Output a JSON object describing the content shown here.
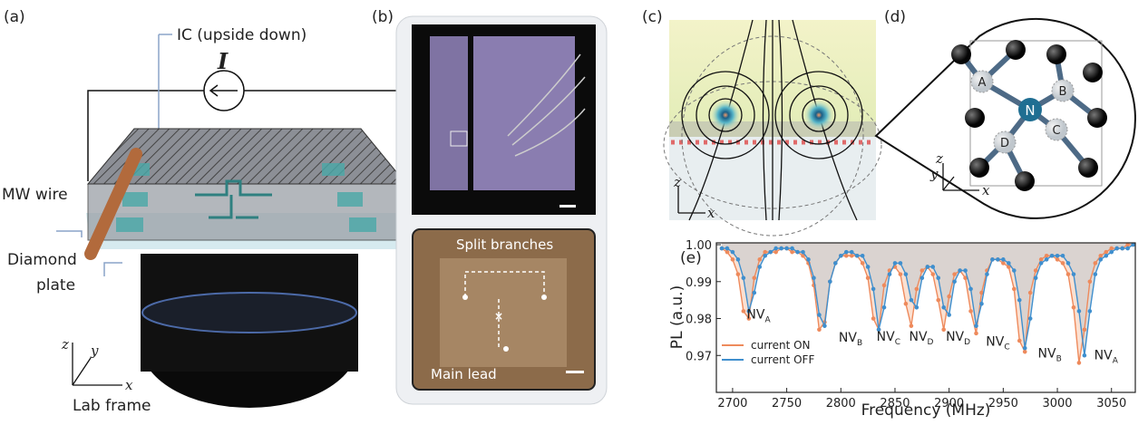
{
  "panel_a": {
    "label": "(a)",
    "ic_label": "IC (upside down)",
    "current": "I",
    "wire_label": "MW wire",
    "plate_label": [
      "Diamond",
      "plate"
    ],
    "axes": [
      "z",
      "y",
      "x"
    ],
    "frame_label": "Lab frame"
  },
  "panel_b": {
    "label": "(b)",
    "branch_label": "Split branches",
    "lead_label": "Main lead"
  },
  "panel_c": {
    "label": "(c)",
    "axes": [
      "z",
      "x"
    ]
  },
  "panel_d": {
    "label": "(d)",
    "atoms": [
      "A",
      "B",
      "N",
      "C",
      "D"
    ],
    "axes": [
      "z",
      "y",
      "x"
    ]
  },
  "chart_data": {
    "type": "line",
    "label": "(e)",
    "x_label": "Frequency (MHz)",
    "y_label": "PL (a.u.)",
    "x": [
      2690,
      2695,
      2700,
      2705,
      2710,
      2715,
      2720,
      2725,
      2730,
      2735,
      2740,
      2745,
      2750,
      2755,
      2760,
      2765,
      2770,
      2775,
      2780,
      2785,
      2790,
      2795,
      2800,
      2805,
      2810,
      2815,
      2820,
      2825,
      2830,
      2835,
      2840,
      2845,
      2850,
      2855,
      2860,
      2865,
      2870,
      2875,
      2880,
      2885,
      2890,
      2895,
      2900,
      2905,
      2910,
      2915,
      2920,
      2925,
      2930,
      2935,
      2940,
      2945,
      2950,
      2955,
      2960,
      2965,
      2970,
      2975,
      2980,
      2985,
      2990,
      2995,
      3000,
      3005,
      3010,
      3015,
      3020,
      3025,
      3030,
      3035,
      3040,
      3045,
      3050,
      3055,
      3060,
      3065,
      3070
    ],
    "series": [
      {
        "name": "current ON",
        "color": "#ee8a5c",
        "fill": "#f9d5c2",
        "values": [
          0.999,
          0.998,
          0.996,
          0.992,
          0.982,
          0.98,
          0.991,
          0.996,
          0.998,
          0.998,
          0.998,
          0.999,
          0.999,
          0.998,
          0.998,
          0.997,
          0.995,
          0.989,
          0.977,
          0.979,
          0.99,
          0.995,
          0.997,
          0.997,
          0.997,
          0.997,
          0.995,
          0.991,
          0.98,
          0.977,
          0.989,
          0.993,
          0.994,
          0.992,
          0.984,
          0.978,
          0.988,
          0.993,
          0.994,
          0.992,
          0.985,
          0.977,
          0.986,
          0.992,
          0.993,
          0.991,
          0.982,
          0.976,
          0.987,
          0.993,
          0.996,
          0.996,
          0.995,
          0.994,
          0.988,
          0.974,
          0.971,
          0.987,
          0.993,
          0.996,
          0.997,
          0.997,
          0.996,
          0.995,
          0.992,
          0.983,
          0.968,
          0.977,
          0.99,
          0.995,
          0.997,
          0.998,
          0.999,
          0.999,
          0.999,
          1.0,
          1.0
        ]
      },
      {
        "name": "current OFF",
        "color": "#3f8fce",
        "fill": "#cfcfcf",
        "values": [
          0.999,
          0.999,
          0.998,
          0.996,
          0.991,
          0.982,
          0.987,
          0.994,
          0.997,
          0.998,
          0.999,
          0.999,
          0.999,
          0.999,
          0.998,
          0.998,
          0.996,
          0.991,
          0.981,
          0.978,
          0.99,
          0.995,
          0.997,
          0.998,
          0.998,
          0.997,
          0.997,
          0.994,
          0.988,
          0.977,
          0.983,
          0.992,
          0.995,
          0.995,
          0.992,
          0.985,
          0.983,
          0.991,
          0.994,
          0.994,
          0.991,
          0.983,
          0.981,
          0.99,
          0.993,
          0.993,
          0.988,
          0.978,
          0.984,
          0.992,
          0.996,
          0.996,
          0.996,
          0.995,
          0.993,
          0.985,
          0.972,
          0.98,
          0.991,
          0.995,
          0.996,
          0.997,
          0.997,
          0.997,
          0.995,
          0.992,
          0.982,
          0.97,
          0.982,
          0.992,
          0.996,
          0.997,
          0.998,
          0.999,
          0.999,
          0.999,
          1.0
        ]
      }
    ],
    "xlim": [
      2685,
      3072
    ],
    "ylim": [
      0.96,
      1.0005
    ],
    "xticks": [
      2700,
      2750,
      2800,
      2850,
      2900,
      2950,
      3000,
      3050
    ],
    "yticks": [
      0.97,
      0.98,
      0.99,
      {
        "value": 1,
        "label": "1.00"
      }
    ],
    "markers": true,
    "shade": true,
    "legend": "lower left",
    "annotations": [
      {
        "text": "NV",
        "sub": "A",
        "x": 2713,
        "y": 0.98
      },
      {
        "text": "NV",
        "sub": "B",
        "x": 2798,
        "y": 0.9737
      },
      {
        "text": "NV",
        "sub": "C",
        "x": 2833,
        "y": 0.974
      },
      {
        "text": "NV",
        "sub": "D",
        "x": 2863,
        "y": 0.974
      },
      {
        "text": "NV",
        "sub": "D",
        "x": 2897,
        "y": 0.974
      },
      {
        "text": "NV",
        "sub": "C",
        "x": 2934,
        "y": 0.9727
      },
      {
        "text": "NV",
        "sub": "B",
        "x": 2982,
        "y": 0.9695
      },
      {
        "text": "NV",
        "sub": "A",
        "x": 3034,
        "y": 0.969
      }
    ]
  }
}
